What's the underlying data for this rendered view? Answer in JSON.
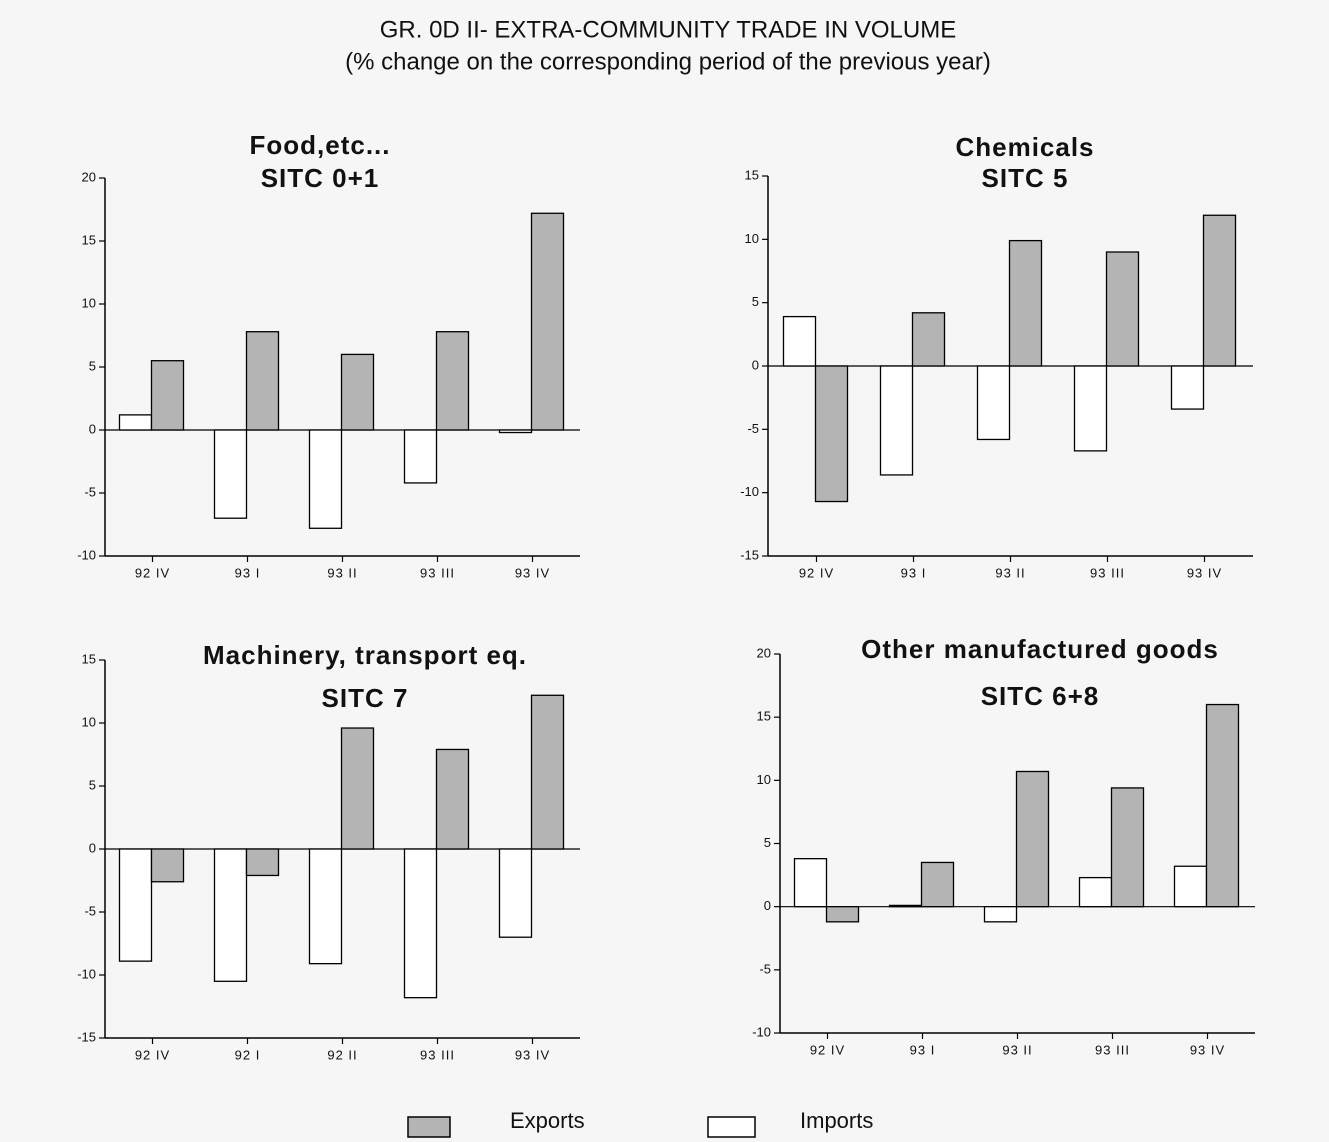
{
  "title": "GR. 0D II-  EXTRA-COMMUNITY TRADE IN VOLUME",
  "subtitle": "(% change on the corresponding period of the previous year)",
  "chart_data": [
    {
      "type": "bar",
      "title": "Food,etc...",
      "subtitle": "SITC 0+1",
      "categories": [
        "92 IV",
        "93 I",
        "93 II",
        "93 III",
        "93 IV"
      ],
      "series": [
        {
          "name": "Imports",
          "color": "#ffffff",
          "values": [
            1.2,
            -7.0,
            -7.8,
            -4.2,
            -0.2
          ]
        },
        {
          "name": "Exports",
          "color": "#b4b4b4",
          "values": [
            5.5,
            7.8,
            6.0,
            7.8,
            17.2
          ]
        }
      ],
      "ylim": [
        -10,
        20
      ],
      "yticks": [
        -10,
        -5,
        0,
        5,
        10,
        15,
        20
      ]
    },
    {
      "type": "bar",
      "title": "Chemicals",
      "subtitle": "SITC 5",
      "categories": [
        "92 IV",
        "93 I",
        "93 II",
        "93 III",
        "93 IV"
      ],
      "series": [
        {
          "name": "Imports",
          "color": "#ffffff",
          "values": [
            3.9,
            -8.6,
            -5.8,
            -6.7,
            -3.4
          ]
        },
        {
          "name": "Exports",
          "color": "#b4b4b4",
          "values": [
            -10.7,
            4.2,
            9.9,
            9.0,
            11.9
          ]
        }
      ],
      "ylim": [
        -15,
        15
      ],
      "yticks": [
        -15,
        -10,
        -5,
        0,
        5,
        10,
        15
      ]
    },
    {
      "type": "bar",
      "title": "Machinery, transport eq.",
      "subtitle": "SITC 7",
      "categories": [
        "92 IV",
        "92 I",
        "92 II",
        "93 III",
        "93 IV"
      ],
      "series": [
        {
          "name": "Imports",
          "color": "#ffffff",
          "values": [
            -8.9,
            -10.5,
            -9.1,
            -11.8,
            -7.0
          ]
        },
        {
          "name": "Exports",
          "color": "#b4b4b4",
          "values": [
            -2.6,
            -2.1,
            9.6,
            7.9,
            12.2
          ]
        }
      ],
      "ylim": [
        -15,
        15
      ],
      "yticks": [
        -15,
        -10,
        -5,
        0,
        5,
        10,
        15
      ]
    },
    {
      "type": "bar",
      "title": "Other manufactured goods",
      "subtitle": "SITC 6+8",
      "categories": [
        "92 IV",
        "93 I",
        "93 II",
        "93 III",
        "93 IV"
      ],
      "series": [
        {
          "name": "Imports",
          "color": "#ffffff",
          "values": [
            3.8,
            0.1,
            -1.2,
            2.3,
            3.2
          ]
        },
        {
          "name": "Exports",
          "color": "#b4b4b4",
          "values": [
            -1.2,
            3.5,
            10.7,
            9.4,
            16.0
          ]
        }
      ],
      "ylim": [
        -10,
        20
      ],
      "yticks": [
        -10,
        -5,
        0,
        5,
        10,
        15,
        20
      ]
    }
  ]
}
